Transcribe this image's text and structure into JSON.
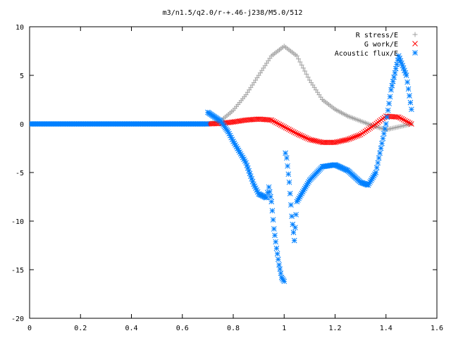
{
  "chart_data": {
    "type": "scatter",
    "title": "m3/n1.5/q2.0/r-+.46-j238/M5.0/512",
    "xlabel": "",
    "ylabel": "",
    "xlim": [
      0,
      1.6
    ],
    "ylim": [
      -20,
      10
    ],
    "x_ticks": [
      0,
      0.2,
      0.4,
      0.6,
      0.8,
      1,
      1.2,
      1.4,
      1.6
    ],
    "x_tick_labels": [
      "0",
      "0.2",
      "0.4",
      "0.6",
      "0.8",
      "1",
      "1.2",
      "1.4",
      "1.6"
    ],
    "y_ticks": [
      -20,
      -15,
      -10,
      -5,
      0,
      5,
      10
    ],
    "y_tick_labels": [
      "-20",
      "-15",
      "-10",
      "-5",
      "0",
      "5",
      "10"
    ],
    "legend_position": "top-right",
    "grid": false,
    "series": [
      {
        "name": "R stress/E",
        "marker": "plus",
        "color": "#a0a0a0",
        "points": [
          [
            0.7,
            0.0
          ],
          [
            0.75,
            0.3
          ],
          [
            0.8,
            1.4
          ],
          [
            0.85,
            3.0
          ],
          [
            0.9,
            5.0
          ],
          [
            0.95,
            7.0
          ],
          [
            1.0,
            8.0
          ],
          [
            1.05,
            7.0
          ],
          [
            1.1,
            4.5
          ],
          [
            1.15,
            2.5
          ],
          [
            1.2,
            1.5
          ],
          [
            1.25,
            0.8
          ],
          [
            1.3,
            0.3
          ],
          [
            1.35,
            -0.2
          ],
          [
            1.4,
            -0.6
          ],
          [
            1.45,
            -0.3
          ],
          [
            1.5,
            0.0
          ]
        ]
      },
      {
        "name": "G work/E",
        "marker": "cross",
        "color": "#ff0000",
        "points": [
          [
            0.7,
            0.0
          ],
          [
            0.75,
            0.05
          ],
          [
            0.8,
            0.2
          ],
          [
            0.85,
            0.4
          ],
          [
            0.9,
            0.5
          ],
          [
            0.95,
            0.4
          ],
          [
            1.0,
            -0.3
          ],
          [
            1.05,
            -1.0
          ],
          [
            1.1,
            -1.6
          ],
          [
            1.15,
            -1.9
          ],
          [
            1.2,
            -1.9
          ],
          [
            1.25,
            -1.6
          ],
          [
            1.3,
            -1.1
          ],
          [
            1.35,
            -0.2
          ],
          [
            1.4,
            0.8
          ],
          [
            1.45,
            0.7
          ],
          [
            1.5,
            0.0
          ]
        ]
      },
      {
        "name": "Acoustic flux/E",
        "marker": "star",
        "color": "#0080ff",
        "points": [
          [
            0.7,
            1.2
          ],
          [
            0.75,
            0.3
          ],
          [
            0.78,
            -0.8
          ],
          [
            0.8,
            -1.8
          ],
          [
            0.85,
            -4.0
          ],
          [
            0.88,
            -6.2
          ],
          [
            0.9,
            -7.2
          ],
          [
            0.93,
            -7.6
          ],
          [
            0.94,
            -6.5
          ],
          [
            0.95,
            -8.0
          ],
          [
            0.96,
            -10.8
          ],
          [
            0.97,
            -12.8
          ],
          [
            0.98,
            -14.5
          ],
          [
            0.99,
            -15.8
          ],
          [
            1.0,
            -16.2
          ],
          [
            1.005,
            -3.0
          ],
          [
            1.01,
            -3.5
          ],
          [
            1.02,
            -6.0
          ],
          [
            1.03,
            -9.5
          ],
          [
            1.04,
            -12.0
          ],
          [
            1.05,
            -8.0
          ],
          [
            1.1,
            -5.8
          ],
          [
            1.15,
            -4.4
          ],
          [
            1.2,
            -4.2
          ],
          [
            1.25,
            -4.8
          ],
          [
            1.3,
            -6.0
          ],
          [
            1.33,
            -6.3
          ],
          [
            1.36,
            -5.0
          ],
          [
            1.38,
            -2.5
          ],
          [
            1.4,
            0.0
          ],
          [
            1.42,
            3.5
          ],
          [
            1.45,
            7.0
          ],
          [
            1.48,
            5.0
          ],
          [
            1.5,
            1.5
          ]
        ]
      }
    ]
  }
}
